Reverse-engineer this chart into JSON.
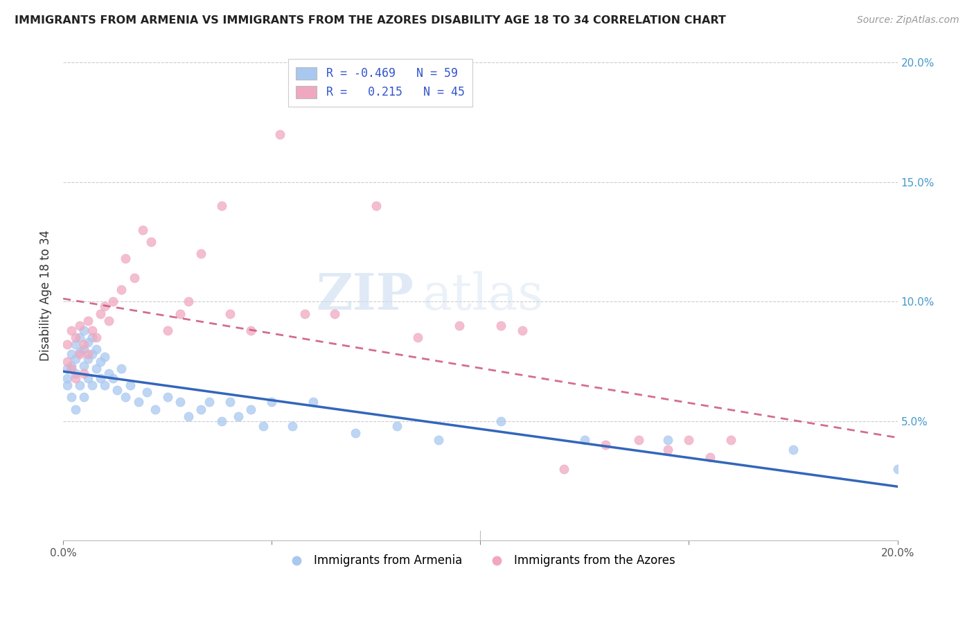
{
  "title": "IMMIGRANTS FROM ARMENIA VS IMMIGRANTS FROM THE AZORES DISABILITY AGE 18 TO 34 CORRELATION CHART",
  "source": "Source: ZipAtlas.com",
  "ylabel": "Disability Age 18 to 34",
  "xlim": [
    0.0,
    0.2
  ],
  "ylim": [
    0.0,
    0.205
  ],
  "yticks": [
    0.05,
    0.1,
    0.15,
    0.2
  ],
  "xticks": [
    0.0,
    0.05,
    0.1,
    0.15,
    0.2
  ],
  "xtick_labels": [
    "0.0%",
    "",
    "",
    "",
    "20.0%"
  ],
  "right_ytick_labels": [
    "5.0%",
    "10.0%",
    "15.0%",
    "20.0%"
  ],
  "armenia_R": -0.469,
  "armenia_N": 59,
  "azores_R": 0.215,
  "azores_N": 45,
  "armenia_color": "#a8c8f0",
  "azores_color": "#f0a8c0",
  "armenia_line_color": "#3366bb",
  "azores_line_color": "#cc5577",
  "legend_label_armenia": "Immigrants from Armenia",
  "legend_label_azores": "Immigrants from the Azores",
  "watermark_zip": "ZIP",
  "watermark_atlas": "atlas",
  "armenia_x": [
    0.001,
    0.001,
    0.001,
    0.002,
    0.002,
    0.002,
    0.003,
    0.003,
    0.003,
    0.003,
    0.004,
    0.004,
    0.004,
    0.005,
    0.005,
    0.005,
    0.005,
    0.006,
    0.006,
    0.006,
    0.007,
    0.007,
    0.007,
    0.008,
    0.008,
    0.009,
    0.009,
    0.01,
    0.01,
    0.011,
    0.012,
    0.013,
    0.014,
    0.015,
    0.016,
    0.018,
    0.02,
    0.022,
    0.025,
    0.028,
    0.03,
    0.033,
    0.035,
    0.038,
    0.04,
    0.042,
    0.045,
    0.048,
    0.05,
    0.055,
    0.06,
    0.07,
    0.08,
    0.09,
    0.105,
    0.125,
    0.145,
    0.175,
    0.2
  ],
  "armenia_y": [
    0.072,
    0.068,
    0.065,
    0.078,
    0.073,
    0.06,
    0.082,
    0.076,
    0.07,
    0.055,
    0.085,
    0.079,
    0.065,
    0.088,
    0.08,
    0.073,
    0.06,
    0.083,
    0.076,
    0.068,
    0.085,
    0.078,
    0.065,
    0.08,
    0.072,
    0.075,
    0.068,
    0.077,
    0.065,
    0.07,
    0.068,
    0.063,
    0.072,
    0.06,
    0.065,
    0.058,
    0.062,
    0.055,
    0.06,
    0.058,
    0.052,
    0.055,
    0.058,
    0.05,
    0.058,
    0.052,
    0.055,
    0.048,
    0.058,
    0.048,
    0.058,
    0.045,
    0.048,
    0.042,
    0.05,
    0.042,
    0.042,
    0.038,
    0.03
  ],
  "azores_x": [
    0.001,
    0.001,
    0.002,
    0.002,
    0.003,
    0.003,
    0.004,
    0.004,
    0.005,
    0.005,
    0.006,
    0.006,
    0.007,
    0.008,
    0.009,
    0.01,
    0.011,
    0.012,
    0.014,
    0.015,
    0.017,
    0.019,
    0.021,
    0.025,
    0.028,
    0.03,
    0.033,
    0.038,
    0.04,
    0.045,
    0.052,
    0.058,
    0.065,
    0.075,
    0.085,
    0.095,
    0.105,
    0.11,
    0.12,
    0.13,
    0.138,
    0.145,
    0.15,
    0.155,
    0.16
  ],
  "azores_y": [
    0.082,
    0.075,
    0.088,
    0.072,
    0.085,
    0.068,
    0.09,
    0.078,
    0.082,
    0.07,
    0.092,
    0.078,
    0.088,
    0.085,
    0.095,
    0.098,
    0.092,
    0.1,
    0.105,
    0.118,
    0.11,
    0.13,
    0.125,
    0.088,
    0.095,
    0.1,
    0.12,
    0.14,
    0.095,
    0.088,
    0.17,
    0.095,
    0.095,
    0.14,
    0.085,
    0.09,
    0.09,
    0.088,
    0.03,
    0.04,
    0.042,
    0.038,
    0.042,
    0.035,
    0.042
  ]
}
